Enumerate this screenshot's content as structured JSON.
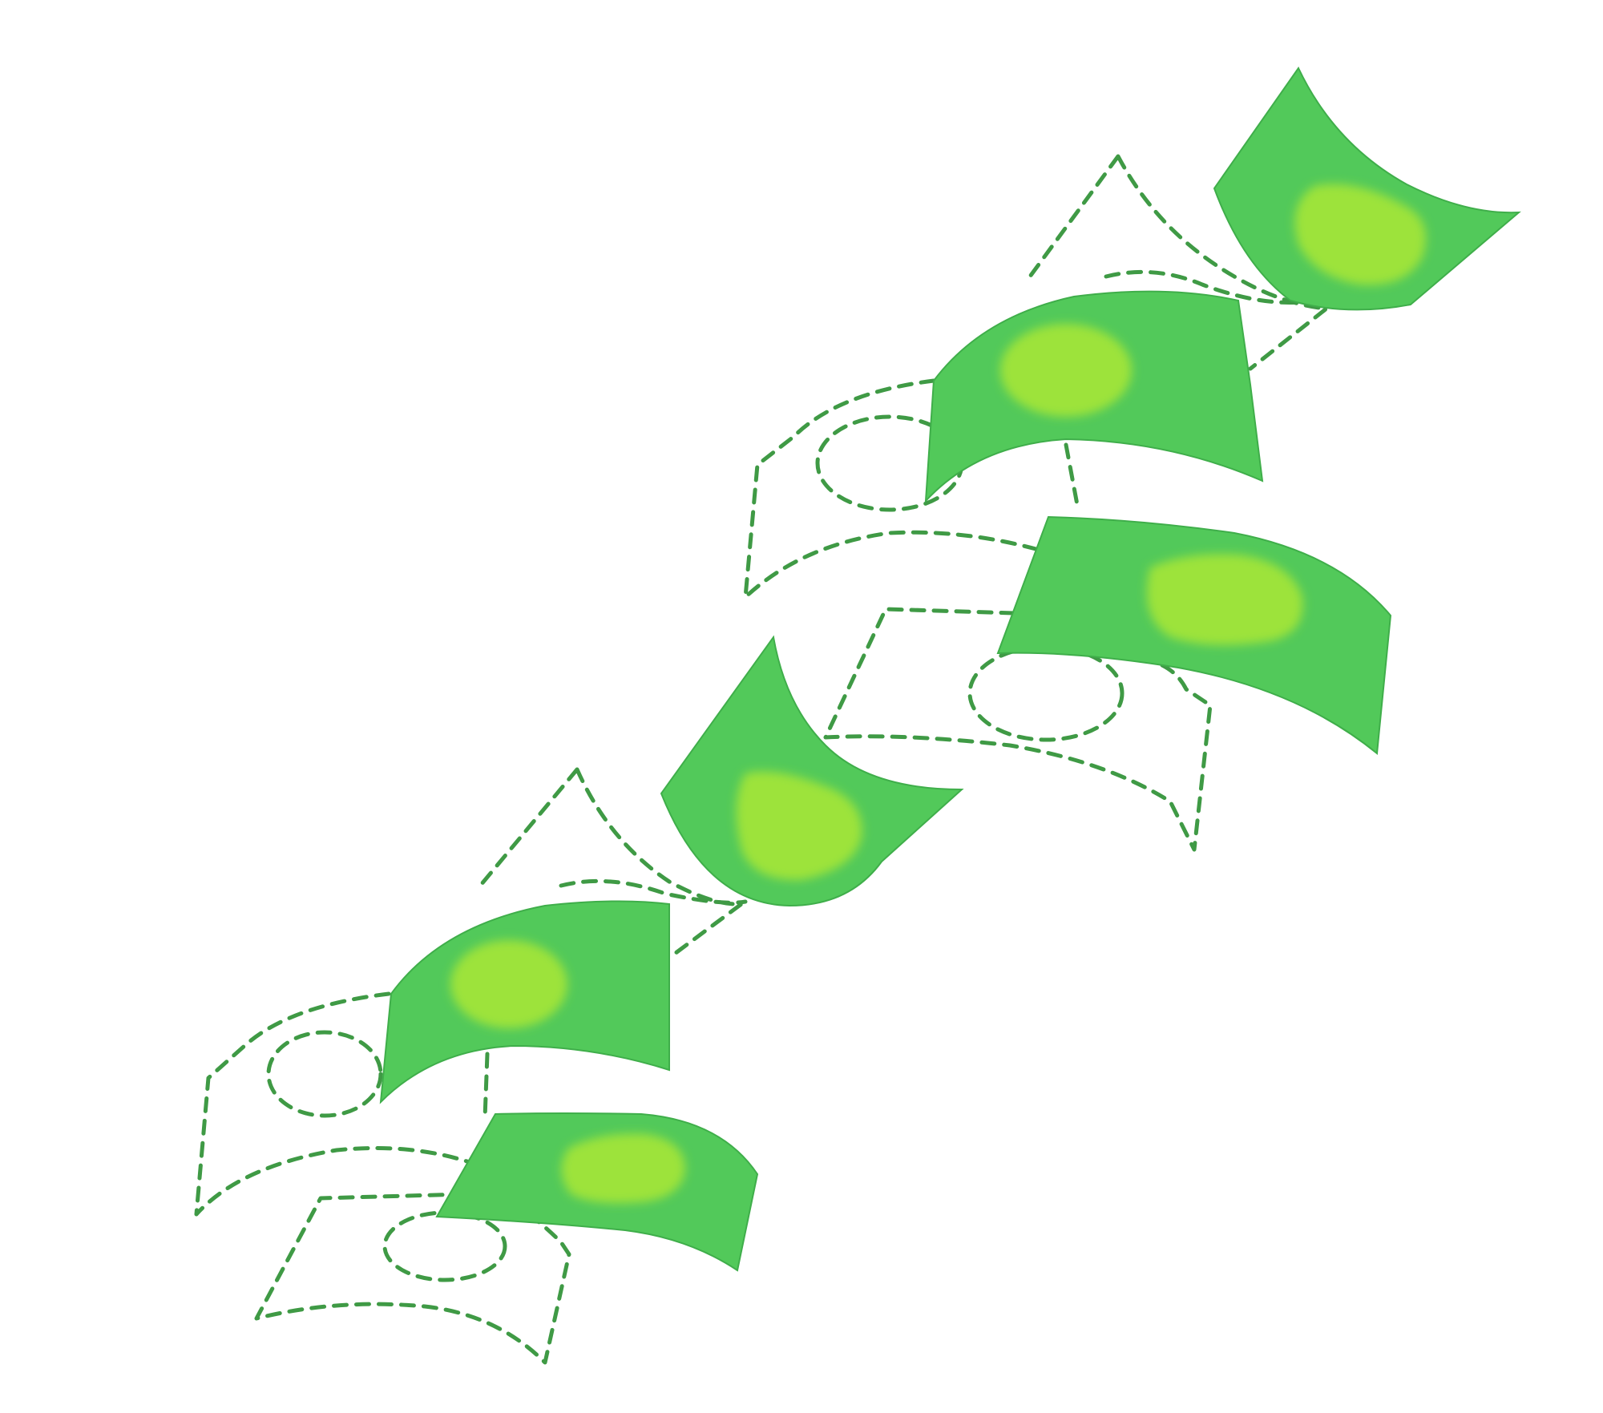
{
  "illustration": {
    "subject": "flying-money-bills",
    "colors": {
      "bill": "#52c95a",
      "bill_edge": "#3fae4a",
      "bill_center": "#9de33a",
      "dashed_outline": "#3f9a45",
      "background": "#ffffff"
    },
    "bills_count": 6,
    "outline_count": 6
  }
}
